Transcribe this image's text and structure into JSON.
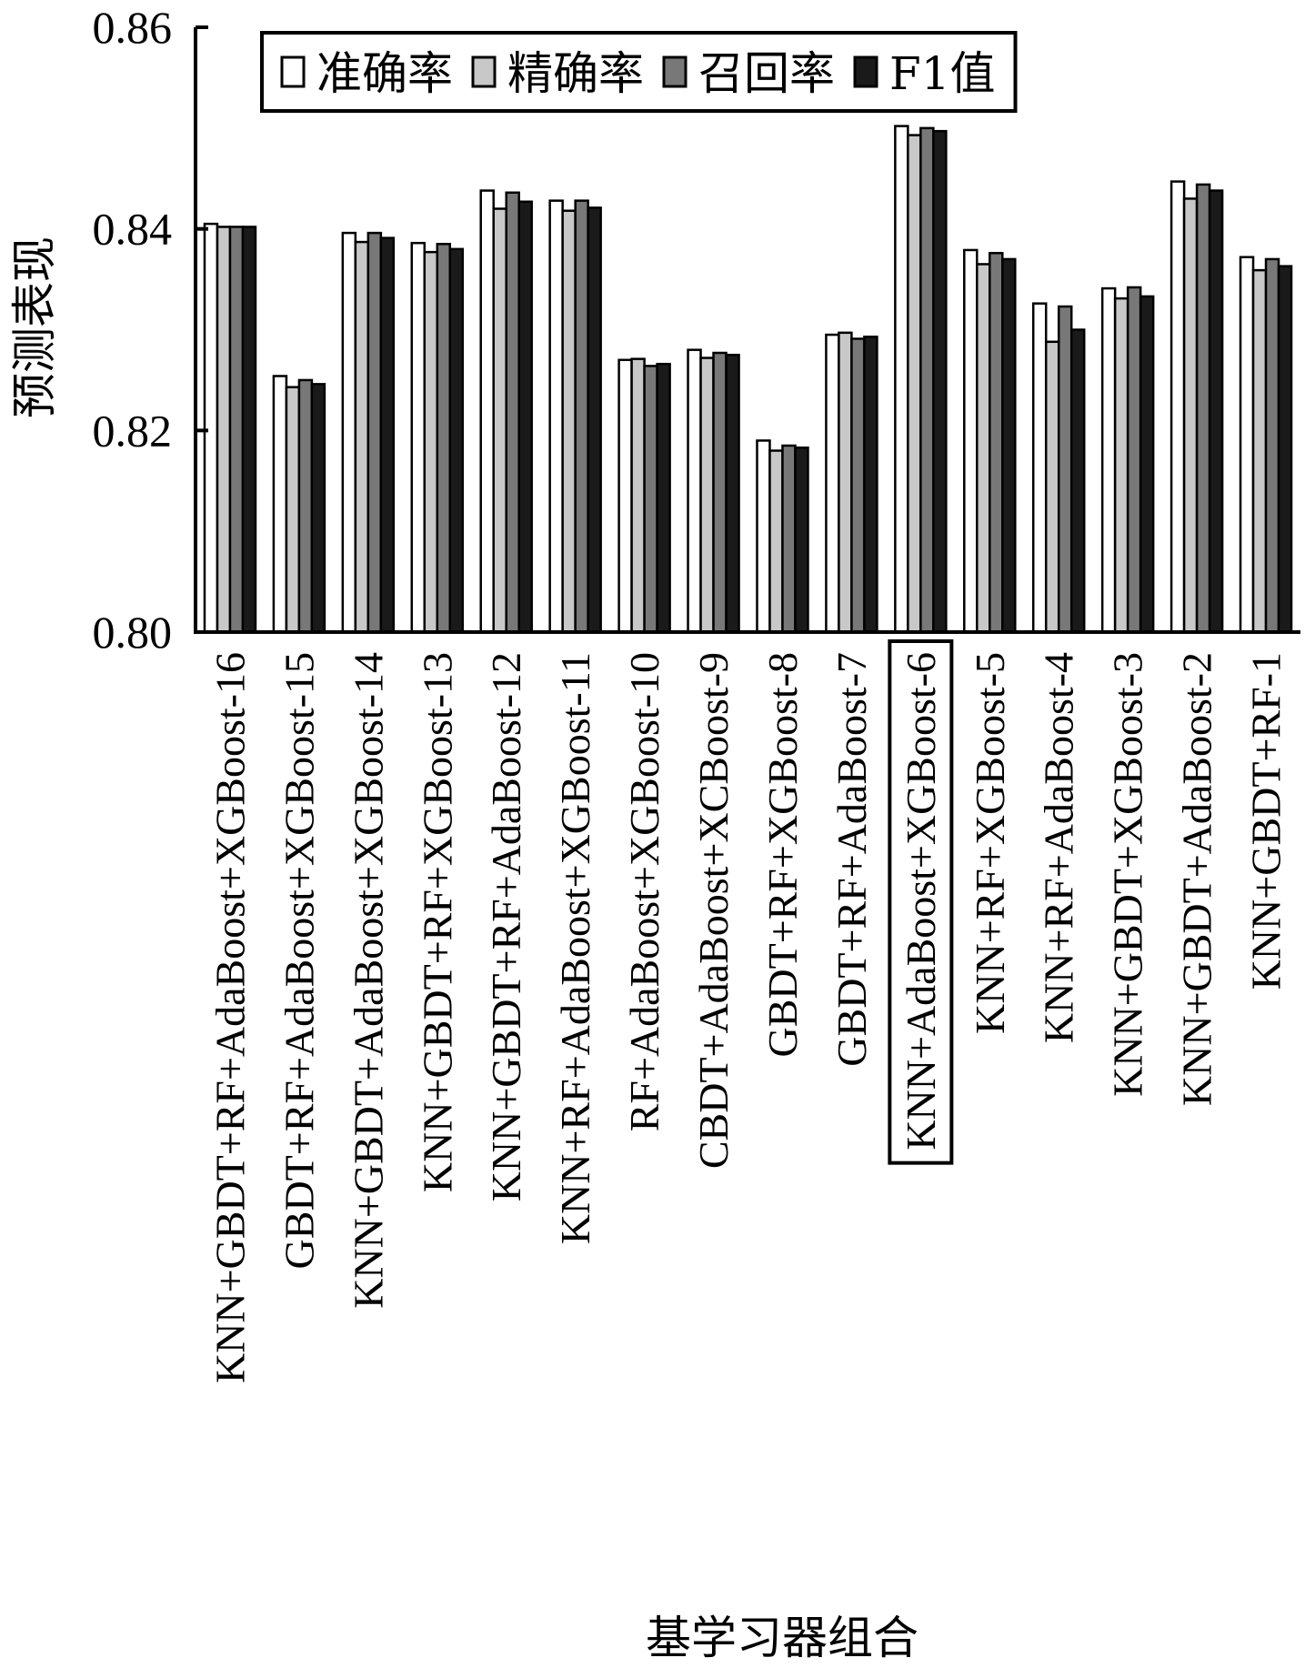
{
  "chart_data": {
    "type": "bar",
    "xlabel": "基学习器组合",
    "ylabel": "预测表现",
    "ylim": [
      0.8,
      0.86
    ],
    "yticks": [
      "0.80",
      "0.82",
      "0.84",
      "0.86"
    ],
    "ytick_values": [
      0.8,
      0.82,
      0.84,
      0.86
    ],
    "legend_position": "top",
    "highlighted_category": "KNN+AdaBoost+XGBoost-6",
    "categories": [
      "KNN+GBDT+RF+AdaBoost+XGBoost-16",
      "GBDT+RF+AdaBoost+XGBoost-15",
      "KNN+GBDT+AdaBoost+XGBoost-14",
      "KNN+GBDT+RF+XGBoost-13",
      "KNN+GBDT+RF+AdaBoost-12",
      "KNN+RF+AdaBoost+XGBoost-11",
      "RF+AdaBoost+XGBoost-10",
      "CBDT+AdaBoost+XCBoost-9",
      "GBDT+RF+XGBoost-8",
      "GBDT+RF+AdaBoost-7",
      "KNN+AdaBoost+XGBoost-6",
      "KNN+RF+XGBoost-5",
      "KNN+RF+AdaBoost-4",
      "KNN+GBDT+XGBoost-3",
      "KNN+GBDT+AdaBoost-2",
      "KNN+GBDT+RF-1"
    ],
    "series": [
      {
        "name": "准确率",
        "color": "#ffffff",
        "values": [
          0.8405,
          0.8254,
          0.8396,
          0.8386,
          0.8438,
          0.8428,
          0.827,
          0.828,
          0.819,
          0.8295,
          0.8502,
          0.8379,
          0.8326,
          0.8341,
          0.8447,
          0.8372
        ]
      },
      {
        "name": "精确率",
        "color": "#c8c8c8",
        "values": [
          0.8402,
          0.8243,
          0.8387,
          0.8377,
          0.842,
          0.8418,
          0.8271,
          0.8272,
          0.818,
          0.8297,
          0.8493,
          0.8365,
          0.8288,
          0.8331,
          0.843,
          0.8359
        ]
      },
      {
        "name": "召回率",
        "color": "#787878",
        "values": [
          0.8402,
          0.825,
          0.8396,
          0.8385,
          0.8436,
          0.8428,
          0.8264,
          0.8277,
          0.8185,
          0.8291,
          0.85,
          0.8376,
          0.8323,
          0.8342,
          0.8444,
          0.837
        ]
      },
      {
        "name": "F1值",
        "color": "#1a1a1a",
        "values": [
          0.8402,
          0.8246,
          0.8391,
          0.838,
          0.8427,
          0.8421,
          0.8266,
          0.8275,
          0.8183,
          0.8293,
          0.8497,
          0.837,
          0.83,
          0.8333,
          0.8438,
          0.8363
        ]
      }
    ]
  }
}
